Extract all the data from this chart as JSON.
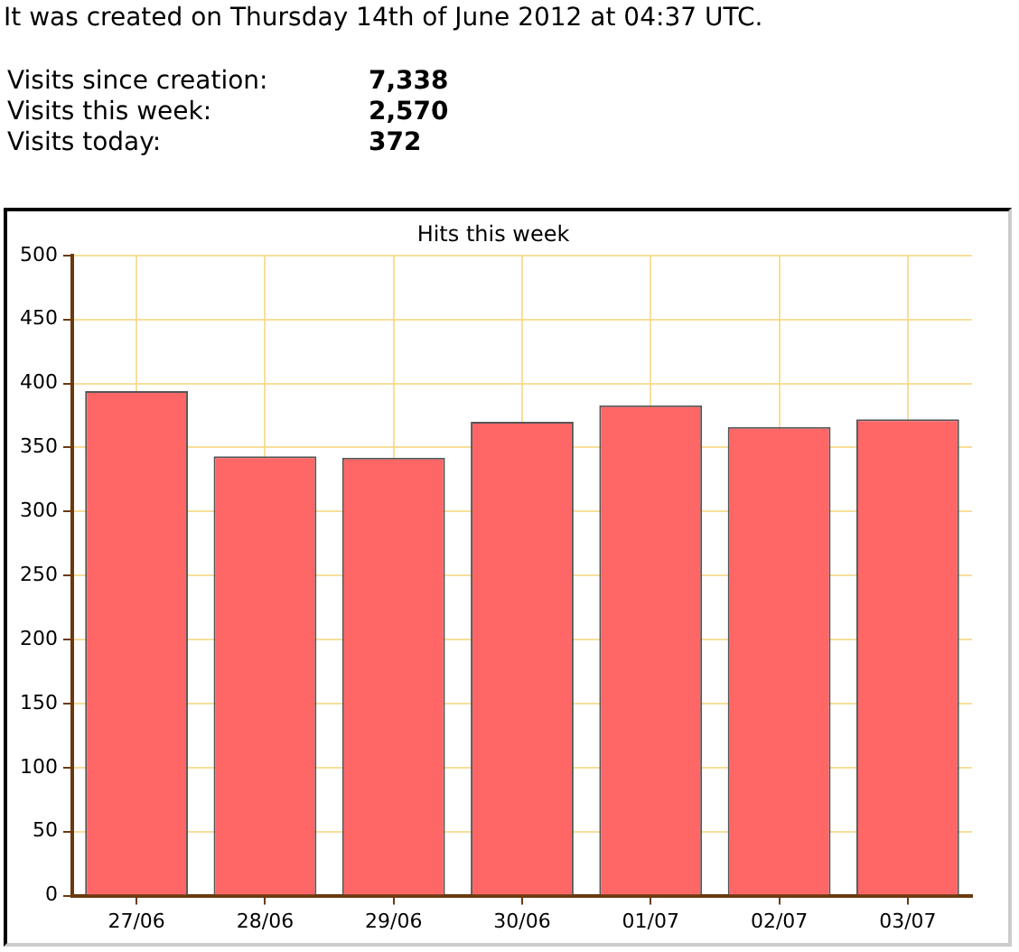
{
  "chart_data": {
    "type": "bar",
    "title": "Hits this week",
    "categories": [
      "27/06",
      "28/06",
      "29/06",
      "30/06",
      "01/07",
      "02/07",
      "03/07"
    ],
    "values": [
      394,
      343,
      342,
      370,
      383,
      366,
      372
    ],
    "color": "#ff6666",
    "ylim": [
      0,
      500
    ],
    "yticks": [
      0,
      50,
      100,
      150,
      200,
      250,
      300,
      350,
      400,
      450,
      500
    ],
    "grid": true,
    "annotations": [
      "It was created on Thursday 14th of June 2012 at 04:37 UTC.",
      "Visits since creation:",
      "7,338",
      "Visits this week:",
      "2,570",
      "Visits today:",
      "372"
    ]
  }
}
